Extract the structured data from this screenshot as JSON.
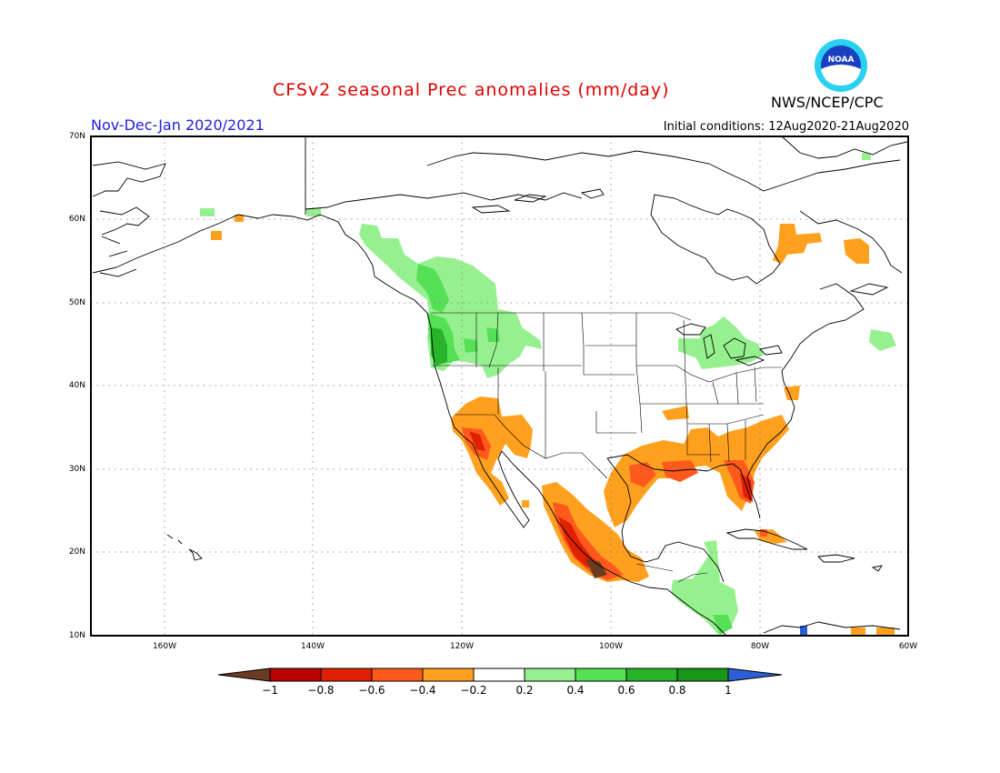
{
  "header": {
    "title": "CFSv2 seasonal Prec anomalies (mm/day)",
    "period": "Nov-Dec-Jan 2020/2021",
    "initial_conditions": "Initial conditions: 12Aug2020-21Aug2020",
    "agency": "NWS/NCEP/CPC",
    "logo_text": "NOAA"
  },
  "axes": {
    "lat_labels": [
      "70N",
      "60N",
      "50N",
      "40N",
      "30N",
      "20N",
      "10N"
    ],
    "lon_labels": [
      "160W",
      "140W",
      "120W",
      "100W",
      "80W",
      "60W"
    ]
  },
  "colorbar": {
    "labels": [
      "-1",
      "-0.8",
      "-0.6",
      "-0.4",
      "-0.2",
      "0.2",
      "0.4",
      "0.6",
      "0.8",
      "1"
    ],
    "colors": [
      "#6b3b23",
      "#b80000",
      "#e02000",
      "#ff5a1e",
      "#ffa01e",
      "#ffffff",
      "#97f08f",
      "#55e055",
      "#28b428",
      "#189618",
      "#2a5fd8"
    ]
  },
  "colors": {
    "dry_strong": "#b80000",
    "dry_mod": "#ff5a1e",
    "dry_weak": "#ffa01e",
    "wet_weak": "#97f08f",
    "wet_mod": "#55e055",
    "wet_strong": "#28b428",
    "dry_extreme": "#6b3b23",
    "wet_extreme": "#2a5fd8"
  }
}
